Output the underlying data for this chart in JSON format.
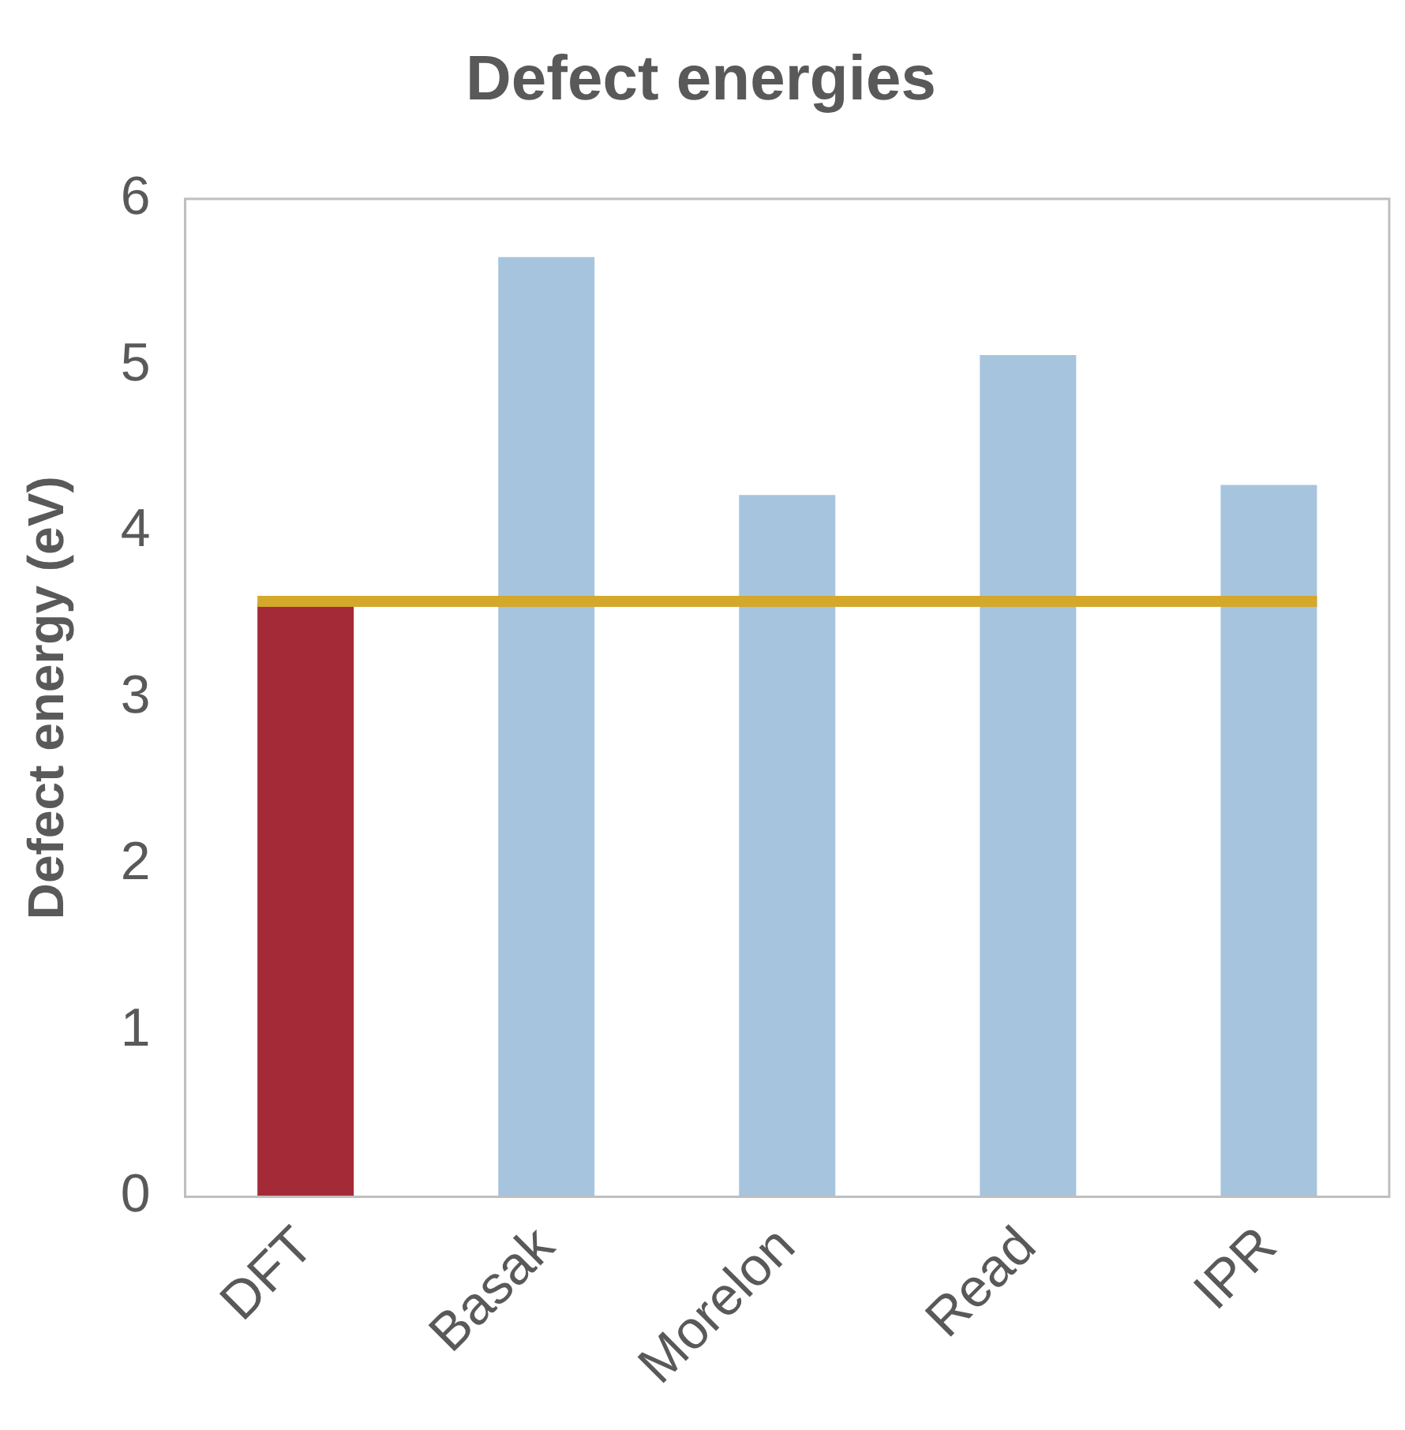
{
  "chart_data": {
    "type": "bar",
    "title": "Defect energies",
    "ylabel": "Defect energy (eV)",
    "categories": [
      "DFT",
      "Basak",
      "Morelon",
      "Read",
      "IPR"
    ],
    "values": [
      3.57,
      5.65,
      4.22,
      5.06,
      4.28
    ],
    "colors": [
      "#a52a38",
      "#a7c4de",
      "#a7c4de",
      "#a7c4de",
      "#a7c4de"
    ],
    "ylim": [
      0,
      6
    ],
    "yticks": [
      0,
      1,
      2,
      3,
      4,
      5,
      6
    ],
    "grid": false,
    "legend": false,
    "ref_lines": [
      {
        "axis": "y",
        "value": 3.58,
        "color": "#d4a82a"
      }
    ]
  }
}
